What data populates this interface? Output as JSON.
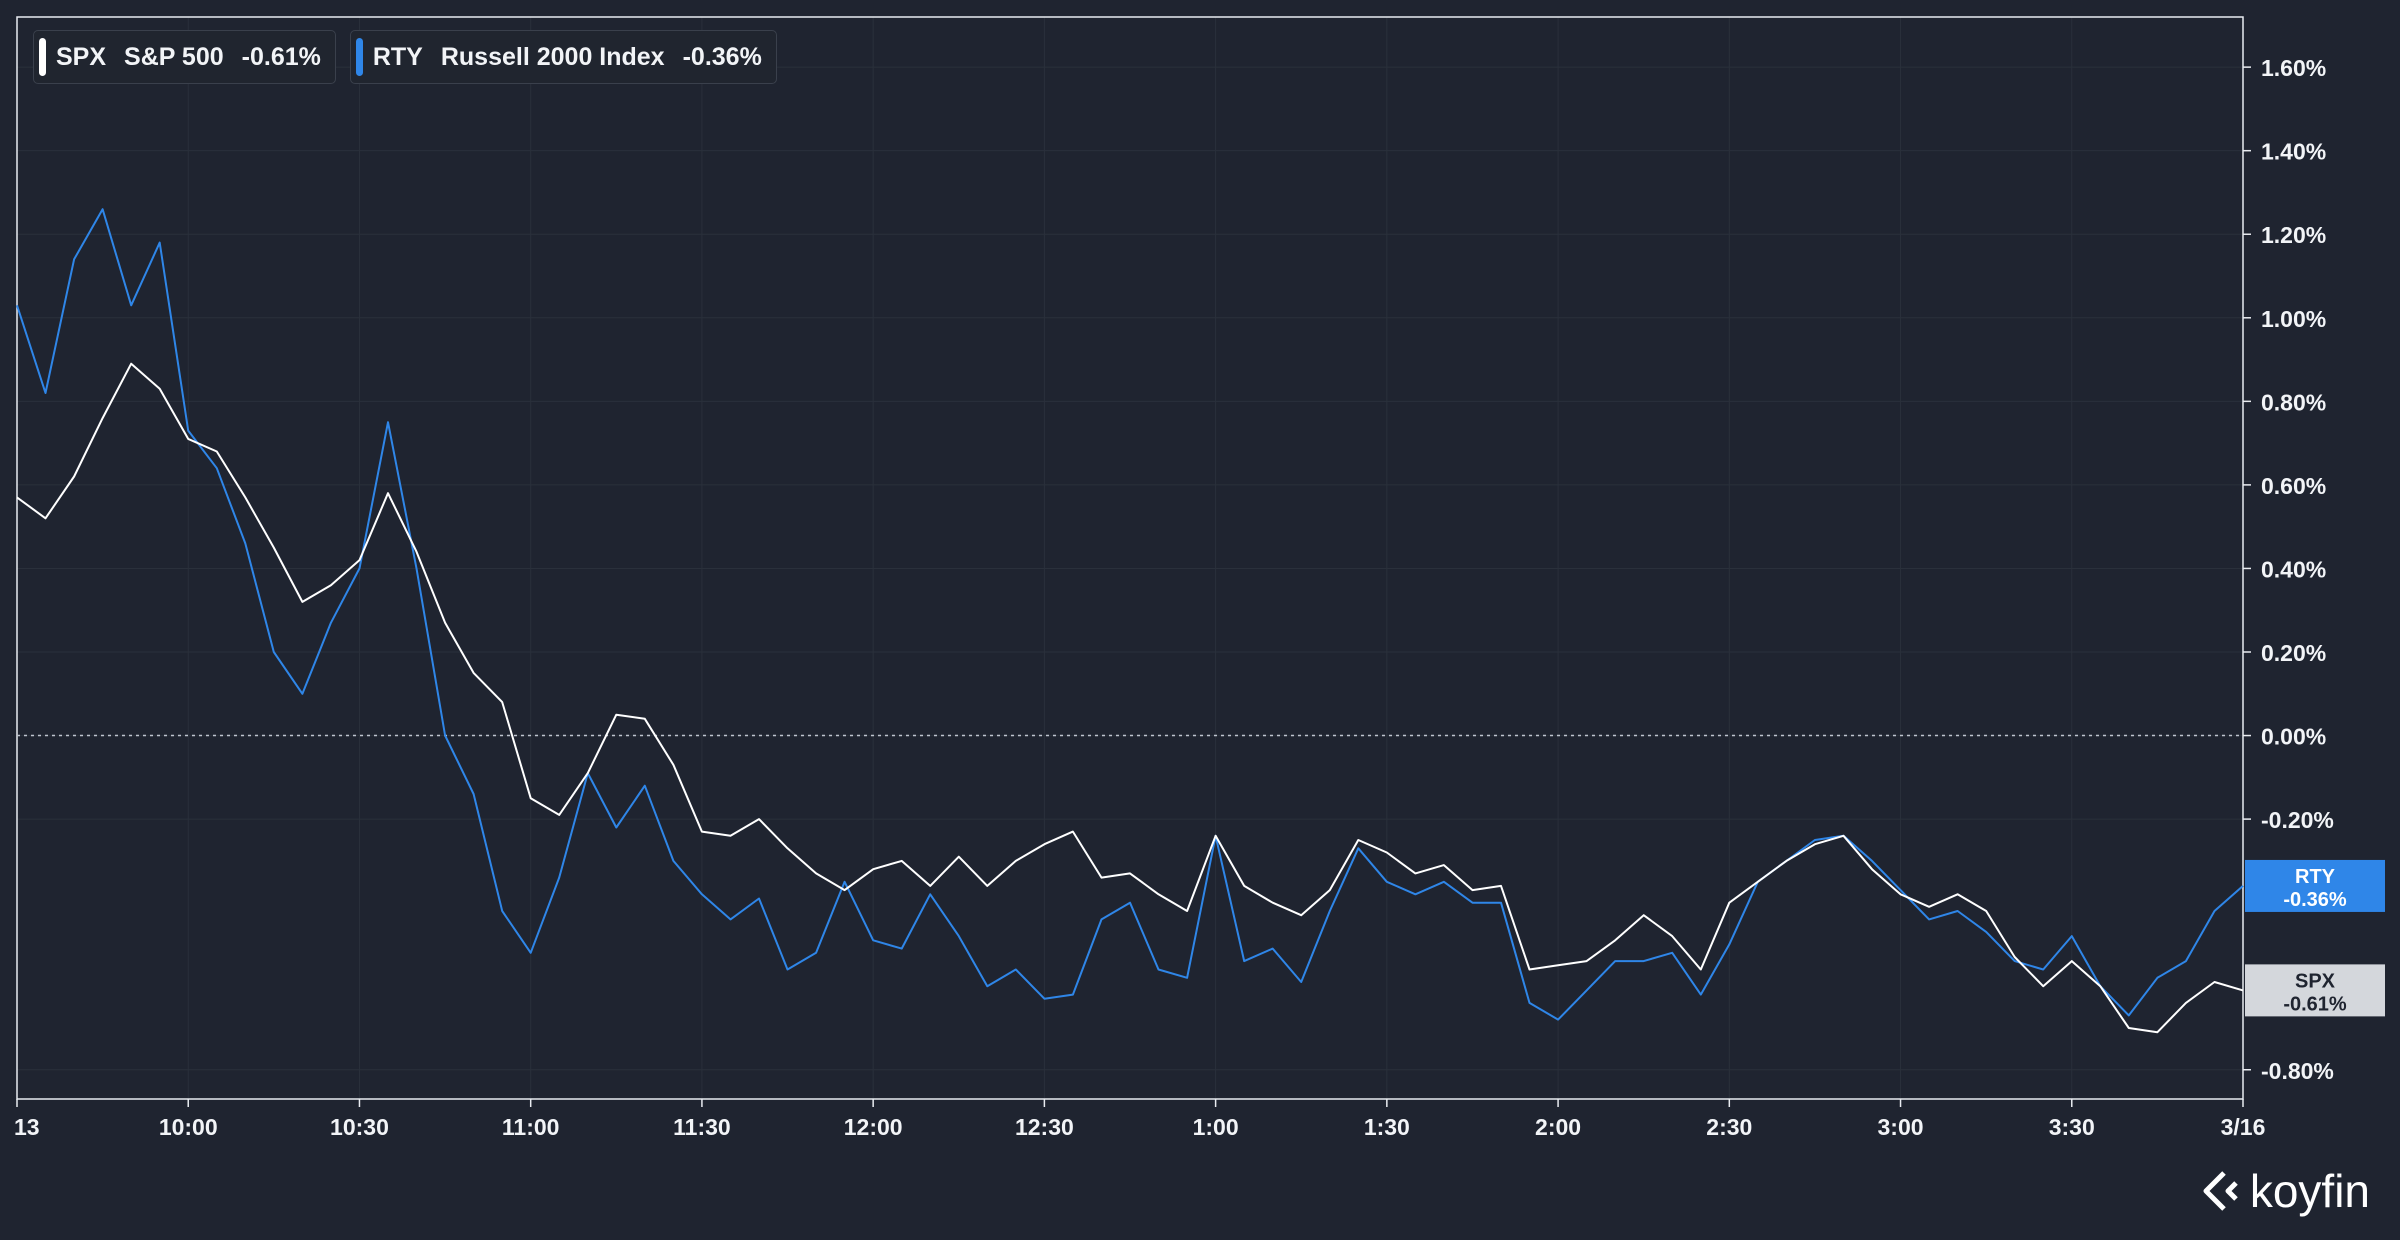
{
  "legend": [
    {
      "symbol": "SPX",
      "name": "S&P 500",
      "change": "-0.61%",
      "color": "#ffffff"
    },
    {
      "symbol": "RTY",
      "name": "Russell 2000 Index",
      "change": "-0.36%",
      "color": "#2f86e8"
    }
  ],
  "brand": {
    "name": "koyfin"
  },
  "chart_data": {
    "type": "line",
    "x_ticks": [
      "13",
      "10:00",
      "10:30",
      "11:00",
      "11:30",
      "12:00",
      "12:30",
      "1:00",
      "1:30",
      "2:00",
      "2:30",
      "3:00",
      "3:30",
      "3/16"
    ],
    "y_ticks": [
      "1.60%",
      "1.40%",
      "1.20%",
      "1.00%",
      "0.80%",
      "0.60%",
      "0.40%",
      "0.20%",
      "0.00%",
      "-0.20%",
      "-0.80%"
    ],
    "ylim": [
      -0.87,
      1.72
    ],
    "y_unit": "%",
    "zero_line": true,
    "grid": true,
    "series": [
      {
        "name": "SPX",
        "label": "S&P 500",
        "color": "#ffffff",
        "last_label": [
          "SPX",
          "-0.61%"
        ],
        "x": [
          "9:30",
          "9:35",
          "9:40",
          "9:45",
          "9:50",
          "9:55",
          "10:00",
          "10:05",
          "10:10",
          "10:15",
          "10:20",
          "10:25",
          "10:30",
          "10:35",
          "10:40",
          "10:45",
          "10:50",
          "10:55",
          "11:00",
          "11:05",
          "11:10",
          "11:15",
          "11:20",
          "11:25",
          "11:30",
          "11:35",
          "11:40",
          "11:45",
          "11:50",
          "11:55",
          "12:00",
          "12:05",
          "12:10",
          "12:15",
          "12:20",
          "12:25",
          "12:30",
          "12:35",
          "12:40",
          "12:45",
          "12:50",
          "12:55",
          "1:00",
          "1:05",
          "1:10",
          "1:15",
          "1:20",
          "1:25",
          "1:30",
          "1:35",
          "1:40",
          "1:45",
          "1:50",
          "1:55",
          "2:00",
          "2:05",
          "2:10",
          "2:15",
          "2:20",
          "2:25",
          "2:30",
          "2:35",
          "2:40",
          "2:45",
          "2:50",
          "2:55",
          "3:00",
          "3:05",
          "3:10",
          "3:15",
          "3:20",
          "3:25",
          "3:30",
          "3:35",
          "3:40",
          "3:45",
          "3:50",
          "3:55",
          "4:00"
        ],
        "values": [
          0.57,
          0.52,
          0.62,
          0.76,
          0.89,
          0.83,
          0.71,
          0.68,
          0.57,
          0.45,
          0.32,
          0.36,
          0.42,
          0.58,
          0.44,
          0.27,
          0.15,
          0.08,
          -0.15,
          -0.19,
          -0.09,
          0.05,
          0.04,
          -0.07,
          -0.23,
          -0.24,
          -0.2,
          -0.27,
          -0.33,
          -0.37,
          -0.32,
          -0.3,
          -0.36,
          -0.29,
          -0.36,
          -0.3,
          -0.26,
          -0.23,
          -0.34,
          -0.33,
          -0.38,
          -0.42,
          -0.24,
          -0.36,
          -0.4,
          -0.43,
          -0.37,
          -0.25,
          -0.28,
          -0.33,
          -0.31,
          -0.37,
          -0.36,
          -0.56,
          -0.55,
          -0.54,
          -0.49,
          -0.43,
          -0.48,
          -0.56,
          -0.4,
          -0.35,
          -0.3,
          -0.26,
          -0.24,
          -0.32,
          -0.38,
          -0.41,
          -0.38,
          -0.42,
          -0.53,
          -0.6,
          -0.54,
          -0.6,
          -0.7,
          -0.71,
          -0.64,
          -0.59,
          -0.61
        ]
      },
      {
        "name": "RTY",
        "label": "Russell 2000 Index",
        "color": "#2f86e8",
        "last_label": [
          "RTY",
          "-0.36%"
        ],
        "x": [
          "9:30",
          "9:35",
          "9:40",
          "9:45",
          "9:50",
          "9:55",
          "10:00",
          "10:05",
          "10:10",
          "10:15",
          "10:20",
          "10:25",
          "10:30",
          "10:35",
          "10:40",
          "10:45",
          "10:50",
          "10:55",
          "11:00",
          "11:05",
          "11:10",
          "11:15",
          "11:20",
          "11:25",
          "11:30",
          "11:35",
          "11:40",
          "11:45",
          "11:50",
          "11:55",
          "12:00",
          "12:05",
          "12:10",
          "12:15",
          "12:20",
          "12:25",
          "12:30",
          "12:35",
          "12:40",
          "12:45",
          "12:50",
          "12:55",
          "1:00",
          "1:05",
          "1:10",
          "1:15",
          "1:20",
          "1:25",
          "1:30",
          "1:35",
          "1:40",
          "1:45",
          "1:50",
          "1:55",
          "2:00",
          "2:05",
          "2:10",
          "2:15",
          "2:20",
          "2:25",
          "2:30",
          "2:35",
          "2:40",
          "2:45",
          "2:50",
          "2:55",
          "3:00",
          "3:05",
          "3:10",
          "3:15",
          "3:20",
          "3:25",
          "3:30",
          "3:35",
          "3:40",
          "3:45",
          "3:50",
          "3:55",
          "4:00"
        ],
        "values": [
          1.03,
          0.82,
          1.14,
          1.26,
          1.03,
          1.18,
          0.73,
          0.64,
          0.46,
          0.2,
          0.1,
          0.27,
          0.4,
          0.75,
          0.4,
          0.0,
          -0.14,
          -0.42,
          -0.52,
          -0.34,
          -0.09,
          -0.22,
          -0.12,
          -0.3,
          -0.38,
          -0.44,
          -0.39,
          -0.56,
          -0.52,
          -0.35,
          -0.49,
          -0.51,
          -0.38,
          -0.48,
          -0.6,
          -0.56,
          -0.63,
          -0.62,
          -0.44,
          -0.4,
          -0.56,
          -0.58,
          -0.24,
          -0.54,
          -0.51,
          -0.59,
          -0.42,
          -0.27,
          -0.35,
          -0.38,
          -0.35,
          -0.4,
          -0.4,
          -0.64,
          -0.68,
          -0.61,
          -0.54,
          -0.54,
          -0.52,
          -0.62,
          -0.5,
          -0.35,
          -0.3,
          -0.25,
          -0.24,
          -0.3,
          -0.37,
          -0.44,
          -0.42,
          -0.47,
          -0.54,
          -0.56,
          -0.48,
          -0.6,
          -0.67,
          -0.58,
          -0.54,
          -0.42,
          -0.36
        ]
      }
    ]
  }
}
